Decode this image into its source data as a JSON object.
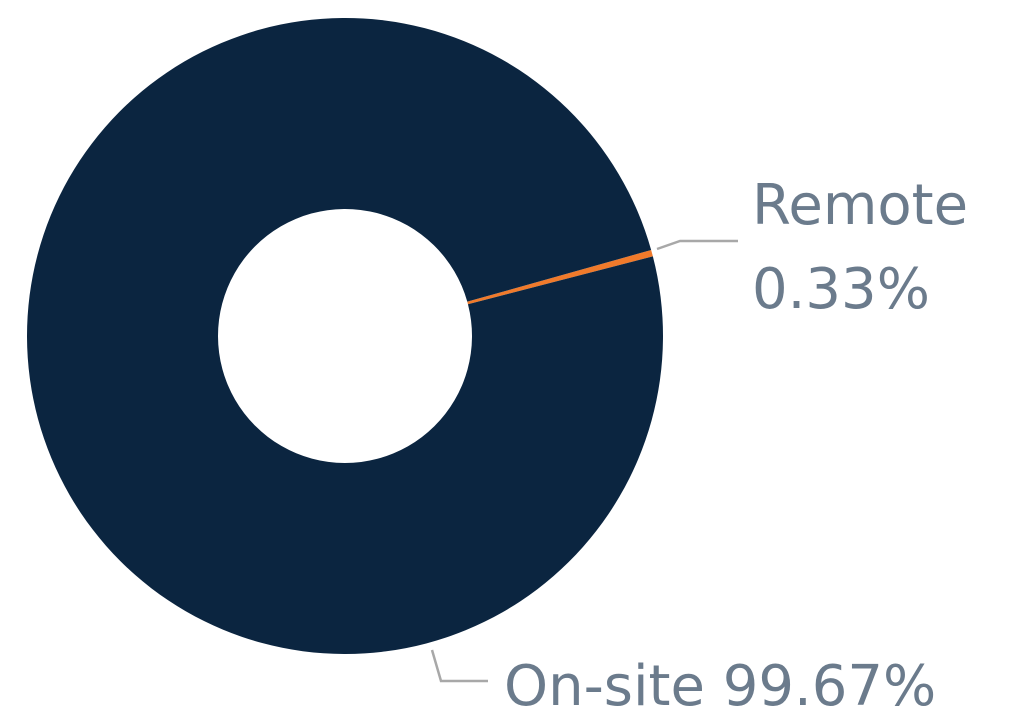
{
  "chart_data": {
    "type": "pie",
    "style": "donut",
    "slices": [
      {
        "label": "On-site",
        "value": 99.67,
        "value_label": "99.67%",
        "color": "#0b2540"
      },
      {
        "label": "Remote",
        "value": 0.33,
        "value_label": "0.33%",
        "color": "#f07a2b"
      }
    ]
  }
}
